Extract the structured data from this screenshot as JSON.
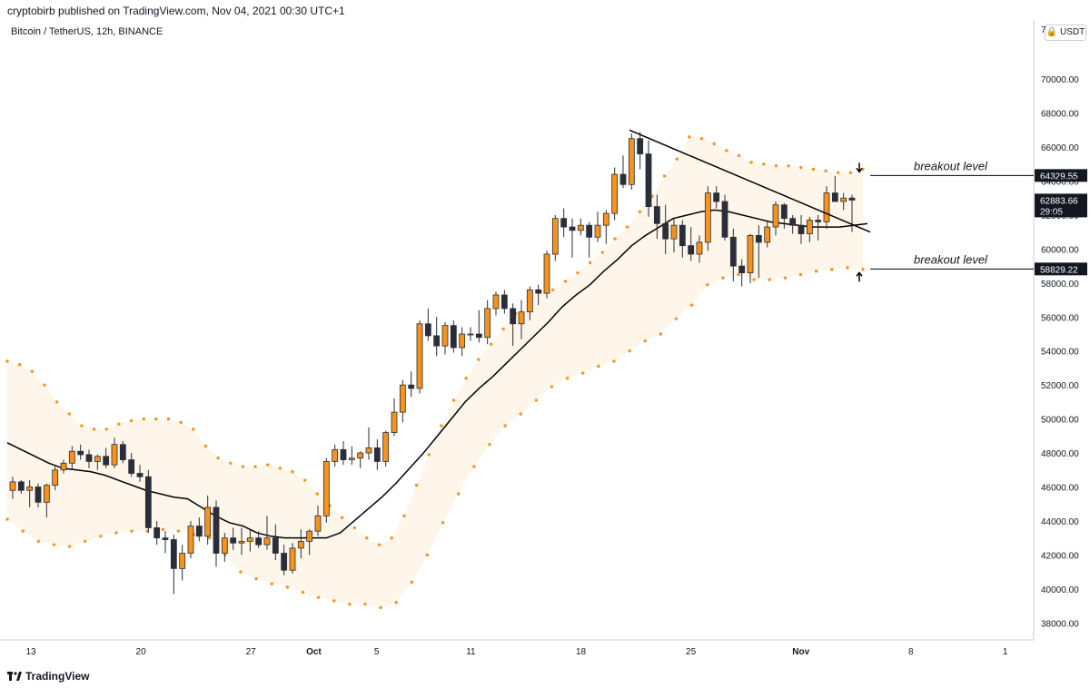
{
  "header": {
    "publish_line": "cryptobirb published on TradingView.com, Nov 04, 2021 00:30 UTC+1",
    "pair_line": "Bitcoin / TetherUS, 12h, BINANCE"
  },
  "price_scale": {
    "currency": "USDT",
    "currency_icon": "lock-icon"
  },
  "footer": {
    "brand": "TradingView",
    "brand_icon": "tradingview-logo-icon"
  },
  "colors": {
    "up_candle": "#f7931a",
    "down_candle": "#2a2e39",
    "band_dots": "#f7931a",
    "band_fill": "#fef6ea",
    "basis_line": "#000000",
    "last_price_label": "#131722"
  },
  "chart_data": {
    "type": "candlestick",
    "x_axis_ticks": [
      {
        "label": "13",
        "day": 12
      },
      {
        "label": "20",
        "day": 19
      },
      {
        "label": "27",
        "day": 26
      },
      {
        "label": "Oct",
        "day": 30
      },
      {
        "label": "5",
        "day": 34
      },
      {
        "label": "11",
        "day": 40
      },
      {
        "label": "18",
        "day": 47
      },
      {
        "label": "25",
        "day": 54
      },
      {
        "label": "Nov",
        "day": 61
      },
      {
        "label": "8",
        "day": 68
      },
      {
        "label": "1",
        "day": 74
      }
    ],
    "y_axis_ticks": [
      38000,
      40000,
      42000,
      44000,
      46000,
      48000,
      50000,
      52000,
      54000,
      56000,
      58000,
      60000,
      62000,
      64000,
      66000,
      68000,
      70000
    ],
    "y_range": [
      37000,
      72200
    ],
    "candles_x": "12h bars, x expressed as day of Sep 2021 (Sep 9 .. Nov 3)",
    "ohlc": [
      [
        45800,
        46600,
        45300,
        46300
      ],
      [
        46300,
        46400,
        45600,
        45800
      ],
      [
        45800,
        46400,
        44800,
        46000
      ],
      [
        46000,
        46200,
        44800,
        45100
      ],
      [
        45100,
        46200,
        44200,
        46100
      ],
      [
        46100,
        47200,
        45800,
        47000
      ],
      [
        47000,
        47600,
        46800,
        47400
      ],
      [
        47400,
        48400,
        47000,
        48100
      ],
      [
        48100,
        48500,
        47600,
        47900
      ],
      [
        47900,
        48200,
        47100,
        47500
      ],
      [
        47500,
        47900,
        47000,
        47800
      ],
      [
        47800,
        48300,
        47100,
        47300
      ],
      [
        47300,
        48900,
        47100,
        48500
      ],
      [
        48500,
        48700,
        47400,
        47600
      ],
      [
        47600,
        48000,
        46600,
        46800
      ],
      [
        46800,
        47300,
        46300,
        46600
      ],
      [
        46600,
        47000,
        43300,
        43600
      ],
      [
        43600,
        44000,
        42600,
        43000
      ],
      [
        43000,
        43400,
        42100,
        42900
      ],
      [
        42900,
        43200,
        39700,
        41200
      ],
      [
        41200,
        42600,
        40500,
        42100
      ],
      [
        42100,
        44000,
        41800,
        43700
      ],
      [
        43700,
        44200,
        42800,
        43100
      ],
      [
        43100,
        45500,
        42600,
        44800
      ],
      [
        44800,
        45200,
        41300,
        42100
      ],
      [
        42100,
        43300,
        41600,
        43000
      ],
      [
        43000,
        43600,
        42300,
        42700
      ],
      [
        42700,
        43600,
        42000,
        42800
      ],
      [
        42800,
        43500,
        42200,
        43000
      ],
      [
        43000,
        43400,
        42400,
        42600
      ],
      [
        42600,
        44300,
        42300,
        43000
      ],
      [
        43000,
        43800,
        41700,
        42100
      ],
      [
        42100,
        42600,
        40800,
        41100
      ],
      [
        41100,
        42700,
        40900,
        42400
      ],
      [
        42400,
        43500,
        41800,
        42800
      ],
      [
        42800,
        43500,
        42000,
        43400
      ],
      [
        43400,
        44900,
        43100,
        44300
      ],
      [
        44300,
        47700,
        43900,
        47500
      ],
      [
        47500,
        48500,
        47200,
        48200
      ],
      [
        48200,
        48700,
        47300,
        47600
      ],
      [
        47600,
        48400,
        47300,
        47700
      ],
      [
        47700,
        48100,
        47100,
        48000
      ],
      [
        48000,
        49500,
        47600,
        48300
      ],
      [
        48300,
        48800,
        47000,
        47500
      ],
      [
        47500,
        49300,
        47200,
        49200
      ],
      [
        49200,
        51200,
        49000,
        50400
      ],
      [
        50400,
        52300,
        49800,
        52000
      ],
      [
        52000,
        52800,
        51300,
        51800
      ],
      [
        51800,
        55800,
        51500,
        55600
      ],
      [
        55600,
        56500,
        54600,
        54900
      ],
      [
        54900,
        56000,
        53700,
        54300
      ],
      [
        54300,
        55700,
        53800,
        55500
      ],
      [
        55500,
        55800,
        53900,
        54200
      ],
      [
        54200,
        55400,
        53700,
        55000
      ],
      [
        55000,
        55400,
        54600,
        55000
      ],
      [
        55000,
        56400,
        54500,
        54800
      ],
      [
        54800,
        57000,
        54400,
        56500
      ],
      [
        56500,
        57500,
        56100,
        57300
      ],
      [
        57300,
        57600,
        56200,
        56500
      ],
      [
        56500,
        56800,
        54300,
        55600
      ],
      [
        55600,
        57000,
        54700,
        56300
      ],
      [
        56300,
        57800,
        55800,
        57600
      ],
      [
        57600,
        57900,
        56700,
        57400
      ],
      [
        57400,
        59900,
        57100,
        59700
      ],
      [
        59700,
        62000,
        59300,
        61800
      ],
      [
        61800,
        62400,
        60700,
        61300
      ],
      [
        61300,
        61800,
        59500,
        61100
      ],
      [
        61100,
        61800,
        60800,
        61400
      ],
      [
        61400,
        61600,
        59500,
        60700
      ],
      [
        60700,
        62200,
        60400,
        61400
      ],
      [
        61400,
        62300,
        60300,
        62100
      ],
      [
        62100,
        64800,
        61700,
        64400
      ],
      [
        64400,
        65500,
        63600,
        63800
      ],
      [
        63800,
        66800,
        63500,
        66500
      ],
      [
        66500,
        66900,
        64700,
        65600
      ],
      [
        65600,
        66400,
        61900,
        62500
      ],
      [
        62500,
        63200,
        60600,
        61500
      ],
      [
        61500,
        62600,
        59700,
        60600
      ],
      [
        60600,
        61800,
        59800,
        61400
      ],
      [
        61400,
        61700,
        59500,
        60200
      ],
      [
        60200,
        61300,
        59300,
        59700
      ],
      [
        59700,
        60800,
        59200,
        60400
      ],
      [
        60400,
        63700,
        59900,
        63300
      ],
      [
        63300,
        63700,
        62400,
        62800
      ],
      [
        62800,
        63200,
        60500,
        60700
      ],
      [
        60700,
        61200,
        58100,
        59000
      ],
      [
        59000,
        59400,
        57800,
        58600
      ],
      [
        58600,
        60900,
        58000,
        60800
      ],
      [
        60800,
        61400,
        58300,
        60400
      ],
      [
        60400,
        61600,
        60100,
        61300
      ],
      [
        61300,
        62800,
        60800,
        62600
      ],
      [
        62600,
        62700,
        61200,
        61800
      ],
      [
        61800,
        62000,
        60900,
        61400
      ],
      [
        61400,
        62000,
        60300,
        60900
      ],
      [
        60900,
        61900,
        60400,
        61700
      ],
      [
        61700,
        62000,
        60500,
        61600
      ],
      [
        61600,
        63700,
        61200,
        63300
      ],
      [
        63300,
        64300,
        62800,
        62800
      ],
      [
        62800,
        63300,
        62300,
        63000
      ],
      [
        63000,
        63200,
        61000,
        62883
      ]
    ],
    "band_upper": [
      53400,
      53200,
      52800,
      52000,
      51000,
      50300,
      49600,
      49400,
      49400,
      49700,
      49900,
      50000,
      50000,
      50000,
      49800,
      49400,
      48400,
      47700,
      47400,
      47200,
      47200,
      47300,
      47100,
      46900,
      46400,
      45600,
      44900,
      44200,
      43600,
      43000,
      42600,
      43000,
      44300,
      46100,
      47900,
      49600,
      51100,
      52400,
      53500,
      54400,
      55300,
      56200,
      56900,
      57500,
      57600,
      58100,
      58600,
      59200,
      59800,
      60600,
      61300,
      62200,
      63100,
      64300,
      65300,
      66600,
      66500,
      66200,
      65800,
      65500,
      65100,
      65000,
      64900,
      64900,
      64800,
      64700,
      64600,
      64500,
      64500,
      64700
    ],
    "band_basis": [
      48600,
      48200,
      47800,
      47400,
      47100,
      47000,
      46900,
      46700,
      46400,
      46100,
      45800,
      45600,
      45400,
      45300,
      44800,
      44300,
      43900,
      43700,
      43300,
      43100,
      43000,
      43000,
      43000,
      43000,
      43300,
      44000,
      44700,
      45400,
      46200,
      47100,
      48000,
      49000,
      50000,
      51000,
      51800,
      52500,
      53300,
      54100,
      54900,
      55700,
      56600,
      57300,
      57900,
      58700,
      59400,
      60200,
      60800,
      61300,
      61800,
      62000,
      62200,
      62300,
      62200,
      62000,
      61800,
      61600,
      61500,
      61400,
      61300,
      61300,
      61300,
      61400,
      61500
    ],
    "band_lower": [
      44100,
      43400,
      42800,
      42600,
      42500,
      42800,
      43100,
      43300,
      43400,
      43400,
      43500,
      43400,
      43200,
      43000,
      42000,
      41000,
      40600,
      40300,
      40100,
      39800,
      39500,
      39300,
      39100,
      39100,
      38900,
      39200,
      40400,
      42000,
      43900,
      45600,
      47200,
      48500,
      49600,
      50300,
      51100,
      51900,
      52400,
      52700,
      53100,
      53400,
      54000,
      54600,
      55000,
      55900,
      56700,
      57900,
      58300,
      58500,
      58200,
      58200,
      58300,
      58500,
      58700,
      58800,
      58900,
      58800
    ],
    "trendline": {
      "from": {
        "day": 20.5,
        "price": 67000
      },
      "to": {
        "day": 35.5,
        "price": 61000
      }
    },
    "annotations": [
      {
        "text": "breakout level",
        "price": 64329.55,
        "arrow": "down"
      },
      {
        "text": "breakout level",
        "price": 58829.22,
        "arrow": "up"
      }
    ],
    "price_labels": [
      {
        "text": "64329.55",
        "price": 64329.55
      },
      {
        "text": "62883.66",
        "price": 62883.66,
        "sub": "29:05"
      },
      {
        "text": "58829.22",
        "price": 58829.22
      }
    ],
    "y_top_partial_label": "7"
  }
}
